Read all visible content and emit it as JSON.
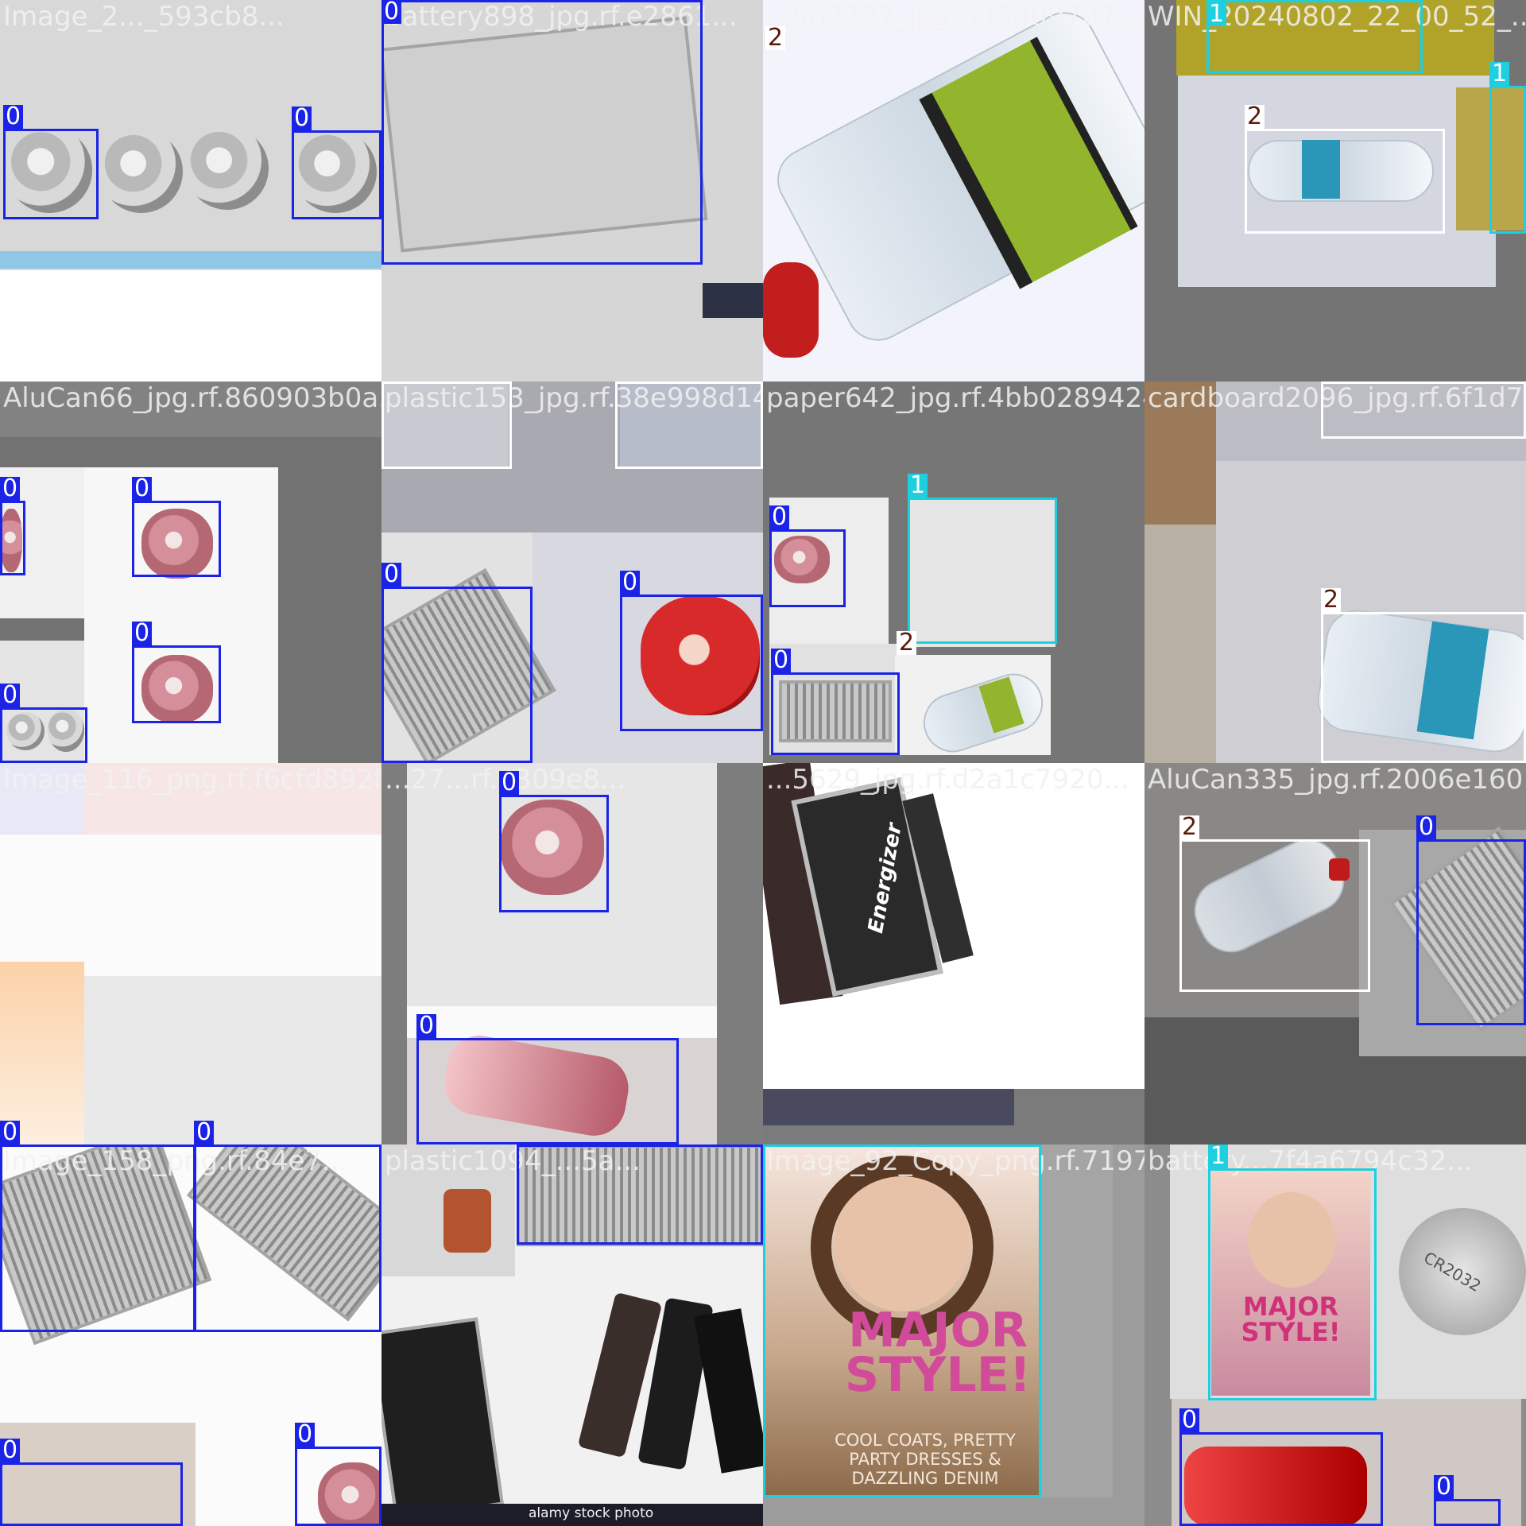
{
  "colors": {
    "class_0": "#1a23e6",
    "class_1": "#1ecfe0",
    "class_2": "#ffffff",
    "label_text_0": "#ffffff",
    "label_text_1": "#ffffff",
    "label_text_2": "#5a1a0a",
    "label_bg_2": "#ffffff"
  },
  "tiles": [
    {
      "title": "Image_2..._593cb8..."
    },
    {
      "title": "battery898_jpg.rf.e2861..."
    },
    {
      "title": "...5n7227_jpg.rf.f3409707..."
    },
    {
      "title": "WIN_20240802_22_00_52_..."
    },
    {
      "title": "AluCan66_jpg.rf.860903b0a..."
    },
    {
      "title": "plastic153_jpg.rf.38e998d14..."
    },
    {
      "title": "paper642_jpg.rf.4bb0289424..."
    },
    {
      "title": "cardboard2096_jpg.rf.6f1d757..."
    },
    {
      "title": "Image_116_png.rf.f6cfd892f..."
    },
    {
      "title": "...27...rf.e309e8..."
    },
    {
      "title": "...5629_jpg.rf.d2a1c7920..."
    },
    {
      "title": "AluCan335_jpg.rf.2006e160..."
    },
    {
      "title": "Image_158_png.rf.84e7..."
    },
    {
      "title": "plastic1094_...5a..."
    },
    {
      "title": "Image_92_Copy_png.rf.7197..."
    },
    {
      "title": "battery...7f4a6794c32..."
    }
  ],
  "boxes": [
    {
      "cls": "0"
    },
    {
      "cls": "0"
    },
    {
      "cls": "0"
    },
    {
      "cls": "2"
    },
    {
      "cls": "1"
    },
    {
      "cls": "1"
    },
    {
      "cls": "2"
    },
    {
      "cls": "0"
    },
    {
      "cls": "0"
    },
    {
      "cls": "0"
    },
    {
      "cls": "0"
    },
    {
      "cls": "0"
    },
    {
      "cls": "0"
    },
    {
      "cls": "2"
    },
    {
      "cls": "2"
    },
    {
      "cls": "0"
    },
    {
      "cls": "1"
    },
    {
      "cls": "0"
    },
    {
      "cls": "2"
    },
    {
      "cls": "2"
    },
    {
      "cls": "2"
    },
    {
      "cls": "0"
    },
    {
      "cls": "0"
    },
    {
      "cls": "0"
    },
    {
      "cls": "0"
    },
    {
      "cls": "2"
    },
    {
      "cls": "0"
    },
    {
      "cls": "0"
    },
    {
      "cls": "0"
    },
    {
      "cls": "0"
    },
    {
      "cls": "0"
    },
    {
      "cls": "0"
    },
    {
      "cls": "1"
    },
    {
      "cls": "1"
    },
    {
      "cls": "0"
    },
    {
      "cls": "0"
    }
  ],
  "overlays": {
    "stock_watermark": "alamy stock photo",
    "brand_energizer": "Energizer",
    "magazine_headline": "MAJOR STYLE!",
    "magazine_subline": "COOL COATS, PRETTY PARTY DRESSES & DAZZLING DENIM",
    "coin_cell": "CR2032"
  }
}
